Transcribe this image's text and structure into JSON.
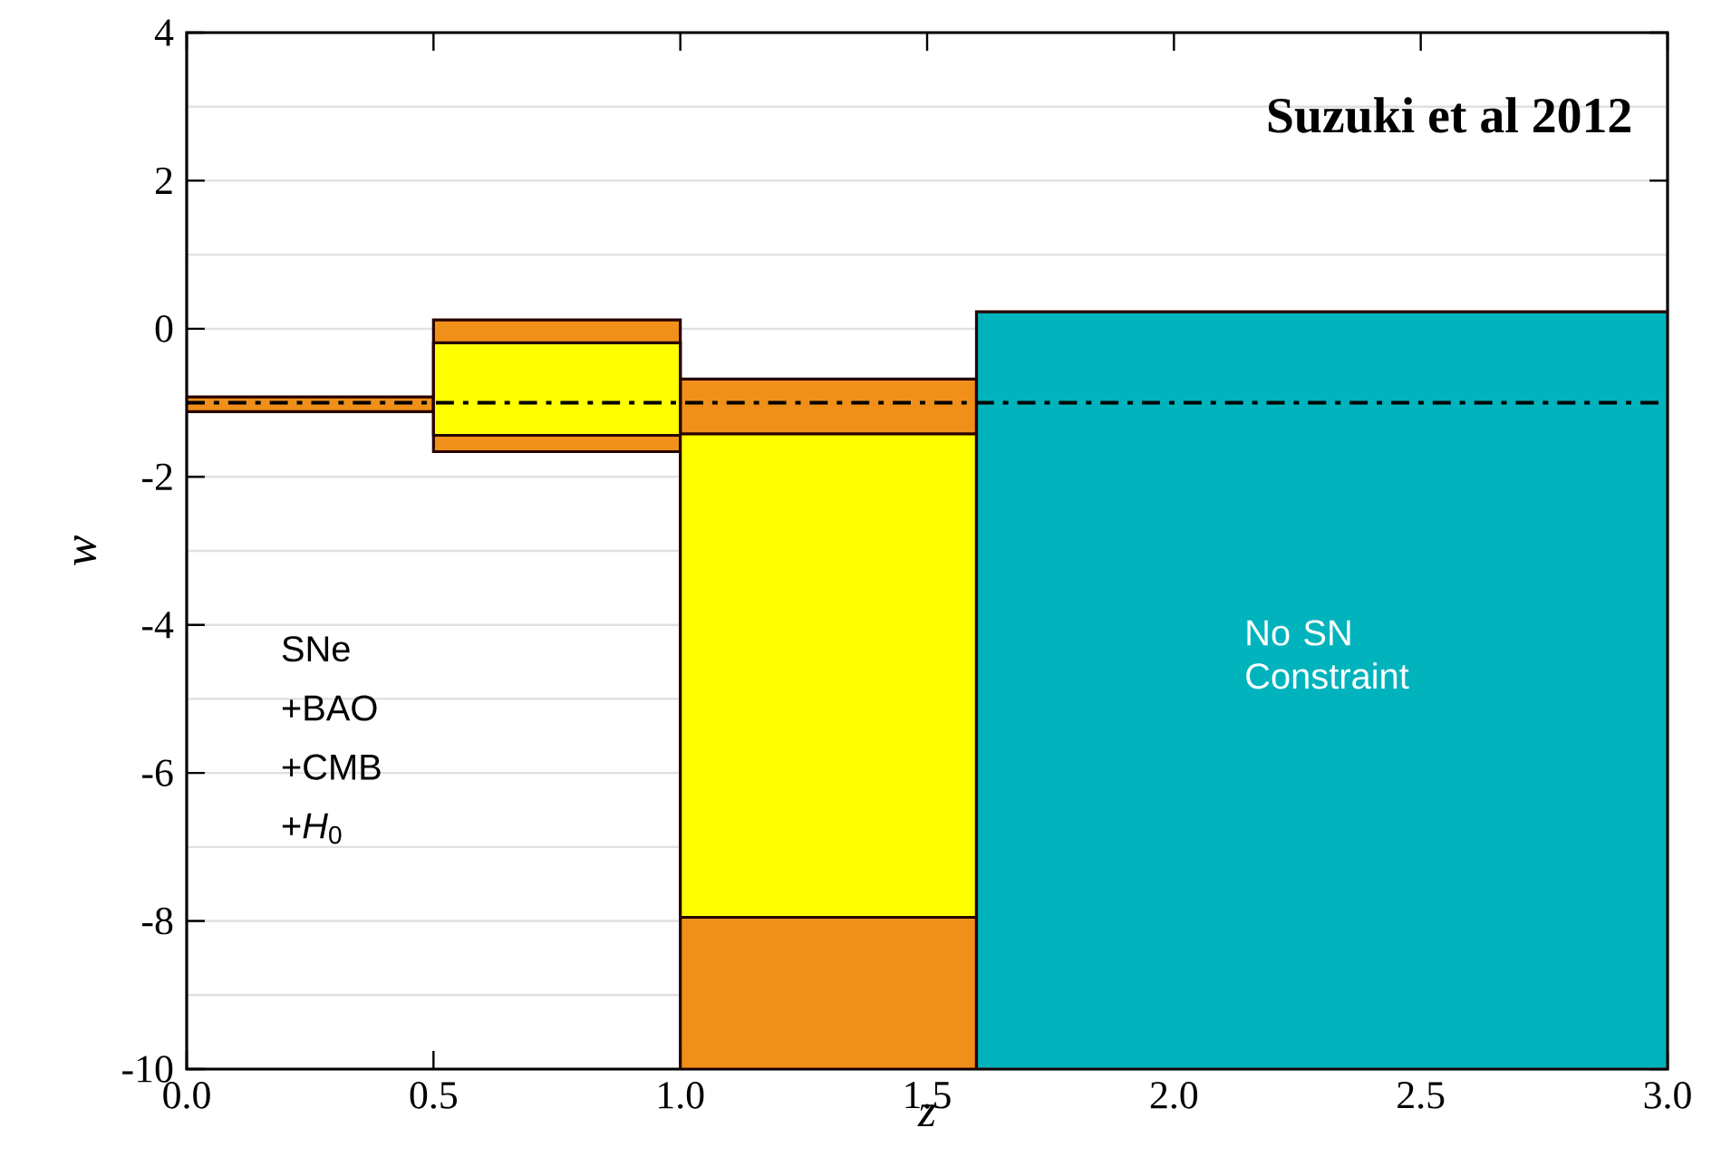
{
  "chart_data": {
    "type": "histogram",
    "title": "Suzuki et al 2012",
    "xlabel": "z",
    "ylabel": "w",
    "bins": [
      0,
      0.5,
      1.0,
      1.6,
      3.0
    ],
    "series": [
      {
        "color": "#f0901a",
        "base": [
          -1.12,
          -1.66,
          -10,
          null
        ],
        "values": [
          0.2,
          1.78,
          9.32,
          null
        ]
      },
      {
        "color": "#ffff00",
        "base": [
          null,
          -1.44,
          -7.95,
          null
        ],
        "values": [
          null,
          1.25,
          6.53,
          null
        ]
      },
      {
        "color": "#00b3bd",
        "base": [
          null,
          null,
          null,
          -10
        ],
        "values": [
          null,
          null,
          null,
          10.23
        ]
      }
    ],
    "xlim": [
      0,
      3
    ],
    "ylim": [
      -10,
      4
    ],
    "xticks": [
      {
        "value": 0,
        "label": "0.0"
      },
      {
        "value": 0.5,
        "label": "0.5"
      },
      {
        "value": 1,
        "label": "1.0"
      },
      {
        "value": 1.5,
        "label": "1.5"
      },
      {
        "value": 2,
        "label": "2.0"
      },
      {
        "value": 2.5,
        "label": "2.5"
      },
      {
        "value": 3,
        "label": "3.0"
      }
    ],
    "yticks": [
      -10,
      -8,
      -6,
      -4,
      -2,
      0,
      2,
      4
    ],
    "grid": "y",
    "ref_lines": [
      {
        "axis": "y",
        "value": -1,
        "color": "#000000",
        "line_style": "dashed"
      }
    ],
    "annotations": [
      "SNe",
      "+BAO",
      "+CMB",
      "+*H*$_{0}$",
      "No SN Constraint"
    ]
  }
}
